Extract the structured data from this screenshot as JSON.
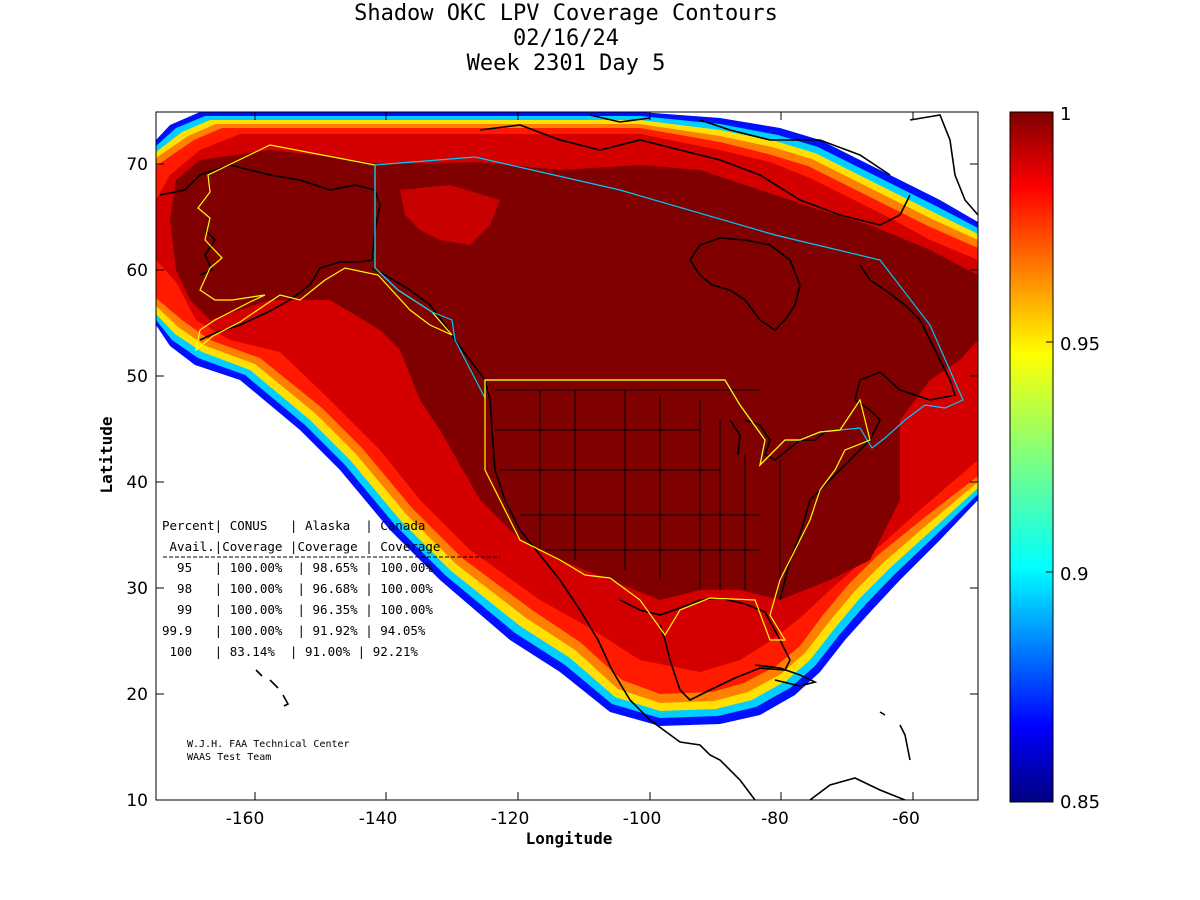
{
  "title": {
    "line1": "Shadow OKC LPV Coverage Contours",
    "line2": "02/16/24",
    "line3": "Week 2301 Day 5"
  },
  "axes": {
    "xlabel": "Longitude",
    "ylabel": "Latitude",
    "x_ticks": [
      "-160",
      "-140",
      "-120",
      "-100",
      "-80",
      "-60"
    ],
    "y_ticks": [
      "10",
      "20",
      "30",
      "40",
      "50",
      "60",
      "70"
    ],
    "xlim": [
      -175,
      -50
    ],
    "ylim": [
      10,
      75
    ]
  },
  "colorbar": {
    "labels": [
      "1",
      "0.95",
      "0.9",
      "0.85"
    ],
    "range": [
      0.85,
      1.0
    ],
    "colormap": "jet"
  },
  "stats_table": {
    "header1": "Percent| CONUS   | Alaska  | Canada",
    "header2": " Avail.|Coverage |Coverage | Coverage",
    "rows": [
      "  95   | 100.00%  | 98.65% | 100.00%",
      "  98   | 100.00%  | 96.68% | 100.00%",
      "  99   | 100.00%  | 96.35% | 100.00%",
      "99.9   | 100.00%  | 91.92% | 94.05%",
      " 100   | 83.14%  | 91.00% | 92.21%"
    ]
  },
  "credit": {
    "line1": "W.J.H. FAA Technical Center",
    "line2": "WAAS Test Team"
  },
  "colors": {
    "core": "#7f0000",
    "ring_red": "#c80000",
    "ring_bright_red": "#ff1a00",
    "border_conus": "#ffff00",
    "border_canada": "#00c8ff"
  }
}
